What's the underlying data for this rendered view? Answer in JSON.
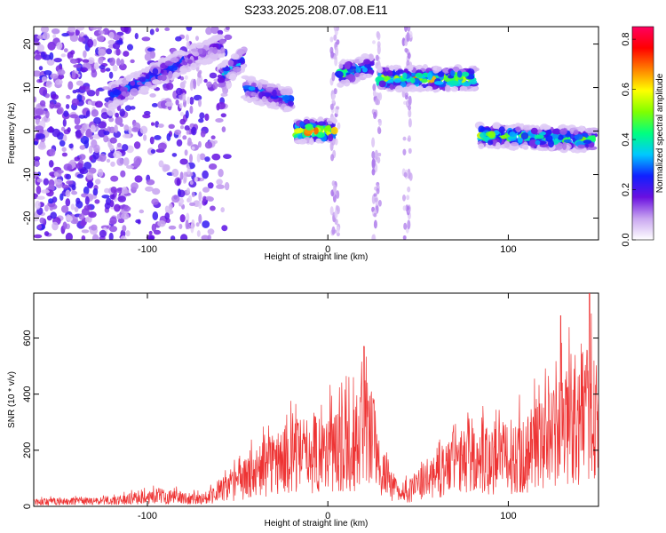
{
  "title": "S233.2025.208.07.08.E11",
  "chart_data": [
    {
      "type": "heatmap",
      "xlabel": "Height of straight line (km)",
      "ylabel": "Frequency (Hz)",
      "xlim": [
        -163,
        150
      ],
      "ylim": [
        -25,
        24
      ],
      "x_ticks": [
        -100,
        0,
        100
      ],
      "y_ticks": [
        -20,
        -10,
        0,
        10,
        20
      ],
      "colorbar": {
        "label": "Normalized spectral amplitude",
        "range": [
          0,
          0.85
        ],
        "ticks": [
          0.0,
          0.2,
          0.4,
          0.6,
          0.8
        ],
        "colors": [
          "#ffffff",
          "#c9a6f0",
          "#6a10e0",
          "#1020ff",
          "#00c8ff",
          "#00ff80",
          "#80ff00",
          "#ffff00",
          "#ff8000",
          "#ff0000",
          "#ff0060"
        ]
      },
      "bands": [
        {
          "x_start": -120,
          "x_end": -80,
          "freq_start": 8,
          "freq_end": 16,
          "amplitude": 0.3
        },
        {
          "x_start": -80,
          "x_end": -58,
          "freq_start": 16,
          "freq_end": 20,
          "amplitude": 0.2
        },
        {
          "x_start": -60,
          "x_end": -46,
          "freq_start": 12,
          "freq_end": 17,
          "amplitude": 0.35
        },
        {
          "x_start": -46,
          "x_end": -20,
          "freq_start": 10,
          "freq_end": 7,
          "amplitude": 0.3
        },
        {
          "x_start": -18,
          "x_end": 4,
          "freq_start": 0,
          "freq_end": 0,
          "amplitude": 0.7
        },
        {
          "x_start": 6,
          "x_end": 24,
          "freq_start": 13,
          "freq_end": 15,
          "amplitude": 0.45
        },
        {
          "x_start": 28,
          "x_end": 82,
          "freq_start": 12,
          "freq_end": 12,
          "amplitude": 0.6
        },
        {
          "x_start": 84,
          "x_end": 148,
          "freq_start": -1,
          "freq_end": -2,
          "amplitude": 0.5
        }
      ]
    },
    {
      "type": "line",
      "xlabel": "Height of straight line (km)",
      "ylabel": "SNR (10 * v/v)",
      "xlim": [
        -163,
        150
      ],
      "ylim": [
        0,
        760
      ],
      "x_ticks": [
        -100,
        0,
        100
      ],
      "y_ticks": [
        0,
        200,
        400,
        600
      ],
      "color": "#ee3333",
      "envelope": [
        {
          "x": -163,
          "y": 25
        },
        {
          "x": -120,
          "y": 30
        },
        {
          "x": -95,
          "y": 60
        },
        {
          "x": -70,
          "y": 40
        },
        {
          "x": -50,
          "y": 130
        },
        {
          "x": -30,
          "y": 250
        },
        {
          "x": -10,
          "y": 300
        },
        {
          "x": 5,
          "y": 320
        },
        {
          "x": 15,
          "y": 350
        },
        {
          "x": 22,
          "y": 450
        },
        {
          "x": 30,
          "y": 200
        },
        {
          "x": 40,
          "y": 60
        },
        {
          "x": 50,
          "y": 120
        },
        {
          "x": 62,
          "y": 200
        },
        {
          "x": 70,
          "y": 250
        },
        {
          "x": 90,
          "y": 260
        },
        {
          "x": 110,
          "y": 300
        },
        {
          "x": 125,
          "y": 400
        },
        {
          "x": 140,
          "y": 500
        },
        {
          "x": 150,
          "y": 520
        }
      ],
      "peaks": [
        {
          "x": 20,
          "y": 570
        },
        {
          "x": 129,
          "y": 680
        },
        {
          "x": 145,
          "y": 760
        }
      ]
    }
  ]
}
